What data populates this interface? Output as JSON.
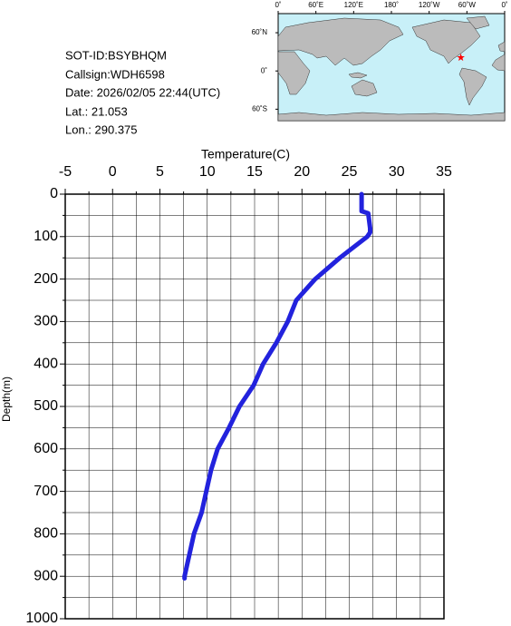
{
  "info": {
    "sot_id": "SOT-ID:BSYBHQM",
    "callsign": "Callsign:WDH6598",
    "date": "Date:  2026/02/05 22:44(UTC)",
    "lat": "Lat.:  21.053",
    "lon": "Lon.:  290.375"
  },
  "map": {
    "lonlim": [
      0,
      360
    ],
    "latlim": [
      -78,
      90
    ],
    "lonticks": [
      {
        "value": 0,
        "label": "0˚"
      },
      {
        "value": 60,
        "label": "60˚E"
      },
      {
        "value": 120,
        "label": "120˚E"
      },
      {
        "value": 180,
        "label": "180˚"
      },
      {
        "value": 240,
        "label": "120˚W"
      },
      {
        "value": 300,
        "label": "60˚W"
      },
      {
        "value": 360,
        "label": "0˚"
      }
    ],
    "latticks": [
      {
        "value": 60,
        "label": "60˚N"
      },
      {
        "value": 0,
        "label": "0˚"
      },
      {
        "value": -60,
        "label": "60˚S"
      }
    ],
    "station": {
      "lon": 290.375,
      "lat": 21.053,
      "color": "#ff0000"
    }
  },
  "chart_data": {
    "type": "line",
    "xlabel": "Temperature(C)",
    "ylabel": "Depth(m)",
    "xlim": [
      -5,
      35
    ],
    "xticks": [
      -5,
      0,
      5,
      10,
      15,
      20,
      25,
      30,
      35
    ],
    "ylim": [
      0,
      1000
    ],
    "yticks": [
      0,
      100,
      200,
      300,
      400,
      500,
      600,
      700,
      800,
      900,
      1000
    ],
    "y_inverted": true,
    "grid": true,
    "series": [
      {
        "color": "#2222dd",
        "x": [
          26.3,
          26.3,
          27.0,
          27.2,
          27.2,
          26.9,
          24.0,
          21.4,
          19.4,
          18.5,
          17.3,
          15.9,
          14.9,
          13.4,
          12.3,
          11.1,
          10.4,
          9.9,
          9.4,
          8.6,
          8.1,
          7.6,
          7.6
        ],
        "values": [
          0,
          40,
          45,
          80,
          90,
          100,
          150,
          200,
          250,
          300,
          350,
          400,
          450,
          500,
          550,
          600,
          650,
          700,
          750,
          800,
          850,
          900,
          905
        ]
      }
    ]
  }
}
